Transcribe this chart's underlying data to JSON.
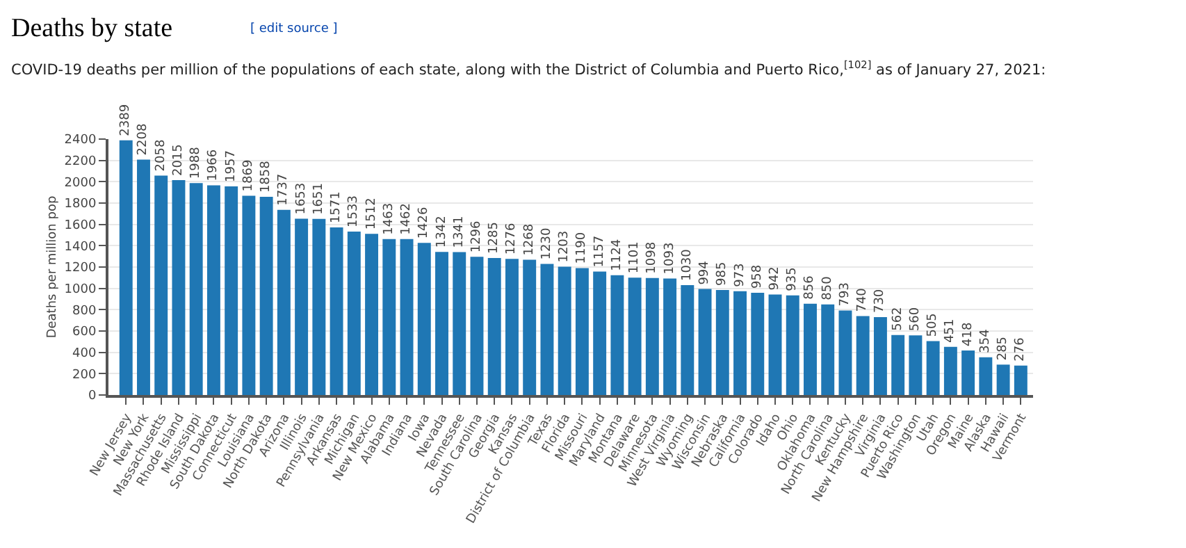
{
  "chart_data": {
    "type": "bar",
    "title": "Deaths by state",
    "subtitle": "COVID-19 deaths per million of the populations of each state, along with the District of Columbia and Puerto Rico,$^{[102]}$ as of January 27, 2021:",
    "annotations": [
      "[ edit source ]"
    ],
    "ylabel": "Deaths per million pop",
    "categories": [
      "New Jersey",
      "New York",
      "Massachusetts",
      "Rhode Island",
      "Mississippi",
      "South Dakota",
      "Connecticut",
      "Louisiana",
      "North Dakota",
      "Arizona",
      "Illinois",
      "Pennsylvania",
      "Arkansas",
      "Michigan",
      "New Mexico",
      "Alabama",
      "Indiana",
      "Iowa",
      "Nevada",
      "Tennessee",
      "South Carolina",
      "Georgia",
      "Kansas",
      "District of Columbia",
      "Texas",
      "Florida",
      "Missouri",
      "Maryland",
      "Montana",
      "Delaware",
      "Minnesota",
      "West Virginia",
      "Wyoming",
      "Wisconsin",
      "Nebraska",
      "California",
      "Colorado",
      "Idaho",
      "Ohio",
      "Oklahoma",
      "North Carolina",
      "Kentucky",
      "New Hampshire",
      "Virginia",
      "Puerto Rico",
      "Washington",
      "Utah",
      "Oregon",
      "Maine",
      "Alaska",
      "Hawaii",
      "Vermont"
    ],
    "values": [
      2389,
      2208,
      2058,
      2015,
      1988,
      1966,
      1957,
      1869,
      1858,
      1737,
      1653,
      1651,
      1571,
      1533,
      1512,
      1463,
      1462,
      1426,
      1342,
      1341,
      1296,
      1285,
      1276,
      1268,
      1230,
      1203,
      1190,
      1157,
      1124,
      1101,
      1098,
      1093,
      1030,
      994,
      985,
      973,
      958,
      942,
      935,
      856,
      850,
      793,
      740,
      730,
      562,
      560,
      505,
      451,
      418,
      354,
      285,
      276
    ],
    "color": "#1f77b4",
    "ylim": [
      0,
      2400
    ],
    "yticks": [
      0,
      200,
      400,
      600,
      800,
      1000,
      1200,
      1400,
      1600,
      1800,
      2000,
      2200,
      2400
    ],
    "grid": "y",
    "data_labels": true,
    "legend": false
  }
}
